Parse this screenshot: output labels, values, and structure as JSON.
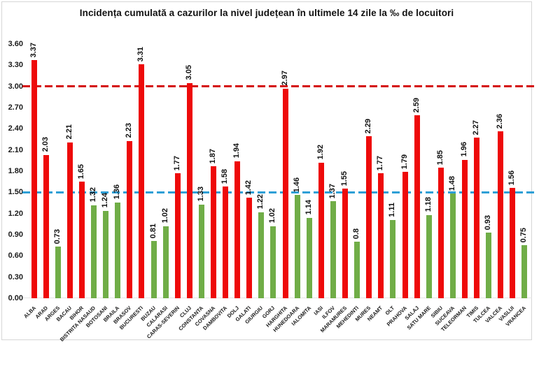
{
  "title": "Incidența cumulată a cazurilor la nivel județean în ultimele 14 zile la ‰ de locuitori",
  "chart_data": {
    "type": "bar",
    "title": "Incidența cumulată a cazurilor la nivel județean în ultimele 14 zile la ‰ de locuitori",
    "unit": "‰",
    "ylim": [
      0,
      3.6
    ],
    "ytick_step": 0.3,
    "yticks": [
      "0.00",
      "0.30",
      "0.60",
      "0.90",
      "1.20",
      "1.50",
      "1.80",
      "2.10",
      "2.40",
      "2.70",
      "3.00",
      "3.30",
      "3.60"
    ],
    "grid": false,
    "legend": false,
    "palette": {
      "red": "#ee0a0a",
      "green": "#70ad47"
    },
    "frame_border_color": "#d6d6d6",
    "reference_lines": [
      {
        "name": "upper-threshold",
        "value": 3.0,
        "color": "#d40b0b",
        "style": "dashed"
      },
      {
        "name": "lower-threshold",
        "value": 1.5,
        "color": "#2e9fd6",
        "style": "dashed"
      }
    ],
    "bars": [
      {
        "county": "ALBA",
        "value": 3.37,
        "label": "3.37",
        "color": "red"
      },
      {
        "county": "ARAD",
        "value": 2.03,
        "label": "2.03",
        "color": "red"
      },
      {
        "county": "ARGES",
        "value": 0.73,
        "label": "0.73",
        "color": "green"
      },
      {
        "county": "BACAU",
        "value": 2.21,
        "label": "2.21",
        "color": "red"
      },
      {
        "county": "BIHOR",
        "value": 1.65,
        "label": "1.65",
        "color": "red"
      },
      {
        "county": "BISTRITA NASAUD",
        "value": 1.32,
        "label": "1.32",
        "color": "green"
      },
      {
        "county": "BOTOSANI",
        "value": 1.24,
        "label": "1.24",
        "color": "green"
      },
      {
        "county": "BRAILA",
        "value": 1.36,
        "label": "1.36",
        "color": "green"
      },
      {
        "county": "BRASOV",
        "value": 2.23,
        "label": "2.23",
        "color": "red"
      },
      {
        "county": "BUCURESTI",
        "value": 3.31,
        "label": "3.31",
        "color": "red"
      },
      {
        "county": "BUZAU",
        "value": 0.81,
        "label": "0.81",
        "color": "green"
      },
      {
        "county": "CALARASI",
        "value": 1.02,
        "label": "1.02",
        "color": "green"
      },
      {
        "county": "CARAS-SEVERIN",
        "value": 1.77,
        "label": "1.77",
        "color": "red"
      },
      {
        "county": "CLUJ",
        "value": 3.05,
        "label": "3.05",
        "color": "red"
      },
      {
        "county": "CONSTANTA",
        "value": 1.33,
        "label": "1.33",
        "color": "green"
      },
      {
        "county": "COVASNA",
        "value": 1.87,
        "label": "1.87",
        "color": "red"
      },
      {
        "county": "DAMBOVITA",
        "value": 1.58,
        "label": "1.58",
        "color": "red"
      },
      {
        "county": "DOLJ",
        "value": 1.94,
        "label": "1.94",
        "color": "red"
      },
      {
        "county": "GALATI",
        "value": 1.42,
        "label": "1.42",
        "color": "red"
      },
      {
        "county": "GIURGIU",
        "value": 1.22,
        "label": "1.22",
        "color": "green"
      },
      {
        "county": "GORJ",
        "value": 1.02,
        "label": "1.02",
        "color": "green"
      },
      {
        "county": "HARGHITA",
        "value": 2.97,
        "label": "2.97",
        "color": "red"
      },
      {
        "county": "HUNEDOARA",
        "value": 1.46,
        "label": "1.46",
        "color": "green"
      },
      {
        "county": "IALOMITA",
        "value": 1.14,
        "label": "1.14",
        "color": "green"
      },
      {
        "county": "IASI",
        "value": 1.92,
        "label": "1.92",
        "color": "red"
      },
      {
        "county": "ILFOV",
        "value": 1.37,
        "label": "1.37",
        "color": "green"
      },
      {
        "county": "MARAMURES",
        "value": 1.55,
        "label": "1.55",
        "color": "red"
      },
      {
        "county": "MEHEDINTI",
        "value": 0.8,
        "label": "0.8",
        "color": "green"
      },
      {
        "county": "MURES",
        "value": 2.29,
        "label": "2.29",
        "color": "red"
      },
      {
        "county": "NEAMT",
        "value": 1.77,
        "label": "1.77",
        "color": "red"
      },
      {
        "county": "OLT",
        "value": 1.11,
        "label": "1.11",
        "color": "green"
      },
      {
        "county": "PRAHOVA",
        "value": 1.79,
        "label": "1.79",
        "color": "red"
      },
      {
        "county": "SALAJ",
        "value": 2.59,
        "label": "2.59",
        "color": "red"
      },
      {
        "county": "SATU MARE",
        "value": 1.18,
        "label": "1.18",
        "color": "green"
      },
      {
        "county": "SIBIU",
        "value": 1.85,
        "label": "1.85",
        "color": "red"
      },
      {
        "county": "SUCEAVA",
        "value": 1.48,
        "label": "1.48",
        "color": "green"
      },
      {
        "county": "TELEORMAN",
        "value": 1.96,
        "label": "1.96",
        "color": "red"
      },
      {
        "county": "TIMIS",
        "value": 2.27,
        "label": "2.27",
        "color": "red"
      },
      {
        "county": "TULCEA",
        "value": 0.93,
        "label": "0.93",
        "color": "green"
      },
      {
        "county": "VALCEA",
        "value": 2.36,
        "label": "2.36",
        "color": "red"
      },
      {
        "county": "VASLUI",
        "value": 1.56,
        "label": "1.56",
        "color": "red"
      },
      {
        "county": "VRANCEA",
        "value": 0.75,
        "label": "0.75",
        "color": "green"
      }
    ]
  }
}
